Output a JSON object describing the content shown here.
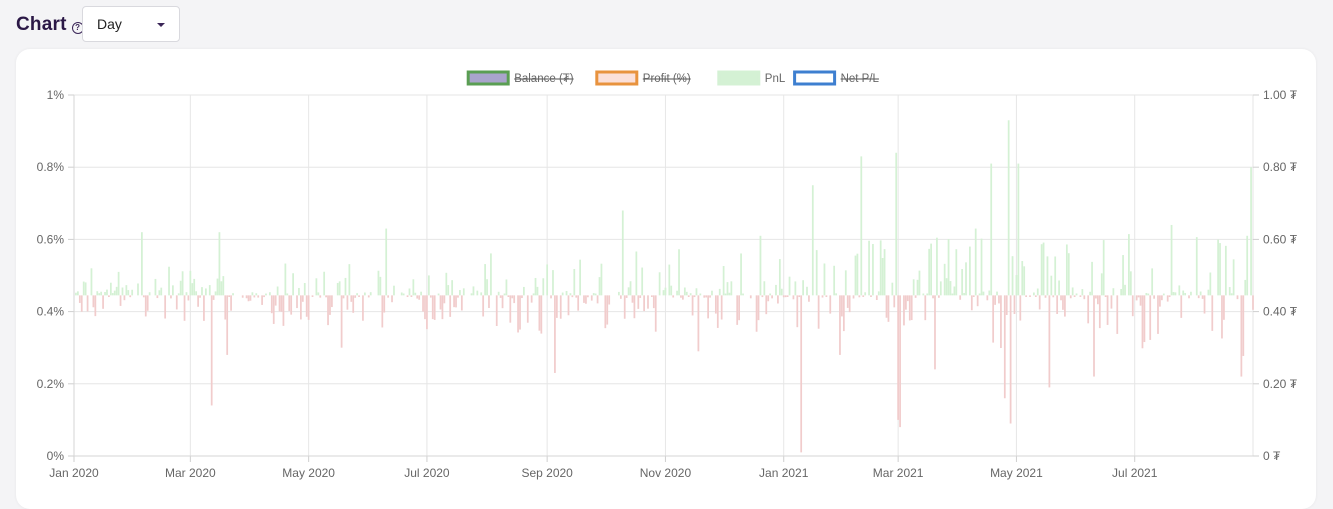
{
  "header": {
    "title": "Chart",
    "help_icon": "question-circle-icon"
  },
  "period_select": {
    "value": "Day",
    "icon": "caret-down-icon"
  },
  "chart_data": {
    "type": "bar",
    "legend_position": "top",
    "grid": true,
    "legend": [
      {
        "label": "Balance (₮)",
        "fill": "#a9a4cc",
        "stroke": "#5a9e53",
        "hidden": true
      },
      {
        "label": "Profit (%)",
        "fill": "#fbe0d9",
        "stroke": "#e8933e",
        "hidden": true
      },
      {
        "label": "PnL",
        "fill": "#d4f1d4",
        "stroke": "#d4f1d4",
        "hidden": false
      },
      {
        "label": "Net P/L",
        "fill": "#ffffff",
        "stroke": "#3e7fd0",
        "hidden": true
      }
    ],
    "y_left": {
      "ticks": [
        "0%",
        "0.2%",
        "0.4%",
        "0.6%",
        "0.8%",
        "1%"
      ],
      "range": [
        0,
        1
      ]
    },
    "y_right": {
      "ticks": [
        "0 ₮",
        "0.20 ₮",
        "0.40 ₮",
        "0.60 ₮",
        "0.80 ₮",
        "1.00 ₮"
      ]
    },
    "x_ticks": [
      "Jan 2020",
      "Mar 2020",
      "May 2020",
      "Jul 2020",
      "Sep 2020",
      "Nov 2020",
      "Jan 2021",
      "Mar 2021",
      "May 2021",
      "Jul 2021"
    ],
    "baseline": 0.445,
    "colors": {
      "positive": "#d4f1d4",
      "negative": "#f1cccc"
    },
    "series": [
      {
        "name": "PnL",
        "x_start": "2020-01-01",
        "x_end": "2021-08-31",
        "notable_values": [
          {
            "date": "2020-01-10",
            "y": 0.52
          },
          {
            "date": "2020-02-05",
            "y": 0.62
          },
          {
            "date": "2020-03-12",
            "y": 0.14
          },
          {
            "date": "2020-03-16",
            "y": 0.62
          },
          {
            "date": "2020-03-20",
            "y": 0.28
          },
          {
            "date": "2020-05-18",
            "y": 0.3
          },
          {
            "date": "2020-06-10",
            "y": 0.63
          },
          {
            "date": "2020-09-05",
            "y": 0.23
          },
          {
            "date": "2020-10-10",
            "y": 0.68
          },
          {
            "date": "2020-11-18",
            "y": 0.29
          },
          {
            "date": "2020-12-20",
            "y": 0.61
          },
          {
            "date": "2021-01-10",
            "y": 0.01
          },
          {
            "date": "2021-01-16",
            "y": 0.75
          },
          {
            "date": "2021-01-30",
            "y": 0.28
          },
          {
            "date": "2021-02-10",
            "y": 0.83
          },
          {
            "date": "2021-02-28",
            "y": 0.84
          },
          {
            "date": "2021-03-01",
            "y": 0.1
          },
          {
            "date": "2021-03-02",
            "y": 0.08
          },
          {
            "date": "2021-03-20",
            "y": 0.24
          },
          {
            "date": "2021-04-10",
            "y": 0.63
          },
          {
            "date": "2021-04-18",
            "y": 0.81
          },
          {
            "date": "2021-04-25",
            "y": 0.16
          },
          {
            "date": "2021-04-27",
            "y": 0.93
          },
          {
            "date": "2021-04-28",
            "y": 0.09
          },
          {
            "date": "2021-05-02",
            "y": 0.81
          },
          {
            "date": "2021-05-18",
            "y": 0.19
          },
          {
            "date": "2021-06-10",
            "y": 0.22
          },
          {
            "date": "2021-07-20",
            "y": 0.64
          },
          {
            "date": "2021-08-25",
            "y": 0.22
          },
          {
            "date": "2021-08-28",
            "y": 0.61
          },
          {
            "date": "2021-08-30",
            "y": 0.8
          }
        ]
      }
    ]
  }
}
